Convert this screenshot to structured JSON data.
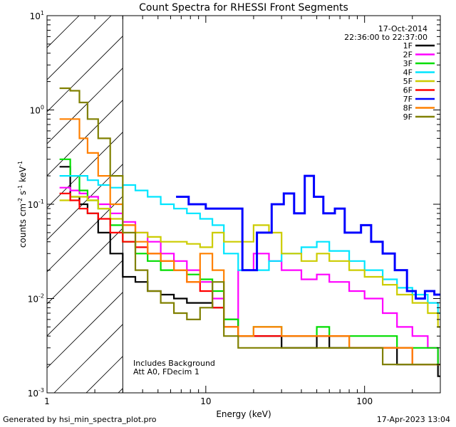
{
  "chart_data": {
    "type": "line",
    "title": "Count Spectra for RHESSI Front Segments",
    "xlabel": "Energy (keV)",
    "ylabel_main": "counts cm",
    "ylabel_sup1": "-2",
    "ylabel_mid": " s",
    "ylabel_sup2": "-1",
    "ylabel_end": " keV",
    "ylabel_sup3": "-1",
    "xscale": "log",
    "yscale": "log",
    "xlim": [
      1,
      300
    ],
    "ylim": [
      0.001,
      10
    ],
    "x_ticks": [
      {
        "value": 1,
        "label": "1"
      },
      {
        "value": 10,
        "label": "10"
      },
      {
        "value": 100,
        "label": "100"
      }
    ],
    "y_ticks": [
      {
        "value": 0.001,
        "base": "10",
        "exp": "-3"
      },
      {
        "value": 0.01,
        "base": "10",
        "exp": "-2"
      },
      {
        "value": 0.1,
        "base": "10",
        "exp": "-1"
      },
      {
        "value": 1,
        "base": "10",
        "exp": "0"
      },
      {
        "value": 10,
        "base": "10",
        "exp": "1"
      }
    ],
    "hatch_region": [
      1,
      3
    ],
    "date": "17-Oct-2014",
    "time_range": "22:36:00 to 22:37:00",
    "annotation_lines": [
      "Includes Background",
      "Att A0, FDecim 1"
    ],
    "legend_position": "top-right",
    "series": [
      {
        "name": "1F",
        "color": "#000000",
        "x": [
          1.2,
          1.4,
          1.6,
          1.8,
          2.1,
          2.5,
          3.0,
          3.6,
          4.3,
          5.2,
          6.3,
          7.6,
          9.2,
          11,
          13,
          16,
          20,
          25,
          30,
          40,
          50,
          60,
          80,
          100,
          130,
          160,
          200,
          250,
          290
        ],
        "y": [
          0.25,
          0.12,
          0.1,
          0.08,
          0.05,
          0.03,
          0.017,
          0.015,
          0.012,
          0.011,
          0.01,
          0.009,
          0.009,
          0.008,
          0.006,
          0.004,
          0.004,
          0.004,
          0.003,
          0.003,
          0.004,
          0.003,
          0.003,
          0.003,
          0.003,
          0.002,
          0.002,
          0.002,
          0.0015
        ]
      },
      {
        "name": "2F",
        "color": "#ff00ff",
        "x": [
          1.2,
          1.4,
          1.6,
          1.8,
          2.1,
          2.5,
          3.0,
          3.6,
          4.3,
          5.2,
          6.3,
          7.6,
          9.2,
          11,
          13,
          16,
          20,
          25,
          30,
          40,
          50,
          60,
          80,
          100,
          130,
          160,
          200,
          250,
          290
        ],
        "y": [
          0.15,
          0.14,
          0.13,
          0.12,
          0.1,
          0.08,
          0.065,
          0.05,
          0.04,
          0.03,
          0.025,
          0.02,
          0.015,
          0.01,
          0.005,
          0.02,
          0.03,
          0.025,
          0.02,
          0.016,
          0.018,
          0.015,
          0.012,
          0.01,
          0.007,
          0.005,
          0.004,
          0.003,
          0.002
        ]
      },
      {
        "name": "3F",
        "color": "#00dd00",
        "x": [
          1.2,
          1.4,
          1.6,
          1.8,
          2.1,
          2.5,
          3.0,
          3.6,
          4.3,
          5.2,
          6.3,
          7.6,
          9.2,
          11,
          13,
          16,
          20,
          25,
          30,
          40,
          50,
          60,
          80,
          100,
          130,
          160,
          200,
          250,
          290
        ],
        "y": [
          0.3,
          0.2,
          0.14,
          0.11,
          0.09,
          0.06,
          0.04,
          0.03,
          0.025,
          0.02,
          0.02,
          0.018,
          0.016,
          0.012,
          0.006,
          0.004,
          0.005,
          0.005,
          0.004,
          0.004,
          0.005,
          0.004,
          0.004,
          0.004,
          0.004,
          0.003,
          0.003,
          0.003,
          0.002
        ]
      },
      {
        "name": "4F",
        "color": "#00e5ff",
        "x": [
          1.2,
          1.4,
          1.6,
          1.8,
          2.1,
          2.5,
          3.0,
          3.6,
          4.3,
          5.2,
          6.3,
          7.6,
          9.2,
          11,
          13,
          16,
          20,
          25,
          30,
          40,
          50,
          60,
          80,
          100,
          130,
          160,
          200,
          250,
          290
        ],
        "y": [
          0.2,
          0.2,
          0.2,
          0.18,
          0.16,
          0.15,
          0.16,
          0.14,
          0.12,
          0.1,
          0.09,
          0.08,
          0.07,
          0.06,
          0.03,
          0.02,
          0.02,
          0.025,
          0.03,
          0.035,
          0.04,
          0.032,
          0.025,
          0.02,
          0.016,
          0.013,
          0.011,
          0.009,
          0.007
        ]
      },
      {
        "name": "5F",
        "color": "#cccc00",
        "x": [
          1.2,
          1.4,
          1.6,
          1.8,
          2.1,
          2.5,
          3.0,
          3.6,
          4.3,
          5.2,
          6.3,
          7.6,
          9.2,
          11,
          13,
          16,
          20,
          25,
          30,
          40,
          50,
          60,
          80,
          100,
          130,
          160,
          200,
          250,
          290
        ],
        "y": [
          0.11,
          0.12,
          0.12,
          0.11,
          0.09,
          0.07,
          0.06,
          0.05,
          0.045,
          0.04,
          0.04,
          0.038,
          0.035,
          0.05,
          0.04,
          0.04,
          0.06,
          0.05,
          0.03,
          0.025,
          0.03,
          0.025,
          0.02,
          0.017,
          0.014,
          0.011,
          0.009,
          0.007,
          0.005
        ]
      },
      {
        "name": "6F",
        "color": "#ff0000",
        "x": [
          1.2,
          1.4,
          1.6,
          1.8,
          2.1,
          2.5,
          3.0,
          3.6,
          4.3,
          5.2,
          6.3,
          7.6,
          9.2,
          11,
          13,
          16,
          20,
          25,
          30,
          40,
          50,
          60,
          80,
          100,
          130,
          160,
          200,
          250,
          290
        ],
        "y": [
          0.13,
          0.11,
          0.09,
          0.08,
          0.07,
          0.05,
          0.04,
          0.035,
          0.03,
          0.025,
          0.02,
          0.015,
          0.012,
          0.008,
          0.005,
          0.004,
          0.004,
          0.004,
          0.004,
          0.004,
          0.004,
          0.004,
          0.003,
          0.003,
          0.003,
          0.003,
          0.002,
          0.002,
          0.002
        ]
      },
      {
        "name": "7F",
        "color": "#0000ff",
        "x": [
          6.5,
          7.8,
          10,
          17,
          21,
          26,
          31,
          36,
          42,
          48,
          55,
          65,
          75,
          95,
          110,
          130,
          155,
          185,
          210,
          240,
          275
        ],
        "y": [
          0.12,
          0.1,
          0.09,
          0.02,
          0.05,
          0.1,
          0.13,
          0.08,
          0.2,
          0.12,
          0.08,
          0.09,
          0.05,
          0.06,
          0.04,
          0.03,
          0.02,
          0.012,
          0.01,
          0.012,
          0.011
        ]
      },
      {
        "name": "8F",
        "color": "#ff8000",
        "x": [
          1.2,
          1.4,
          1.6,
          1.8,
          2.1,
          2.5,
          3.0,
          3.6,
          4.3,
          5.2,
          6.3,
          7.6,
          9.2,
          11,
          13,
          16,
          20,
          25,
          30,
          40,
          50,
          60,
          80,
          100,
          130,
          160,
          200,
          250,
          290
        ],
        "y": [
          0.8,
          0.8,
          0.5,
          0.35,
          0.2,
          0.1,
          0.06,
          0.04,
          0.03,
          0.025,
          0.02,
          0.015,
          0.03,
          0.02,
          0.005,
          0.004,
          0.005,
          0.005,
          0.004,
          0.004,
          0.004,
          0.004,
          0.003,
          0.003,
          0.003,
          0.003,
          0.002,
          0.002,
          0.002
        ]
      },
      {
        "name": "9F",
        "color": "#808000",
        "x": [
          1.2,
          1.4,
          1.6,
          1.8,
          2.1,
          2.5,
          3.0,
          3.6,
          4.3,
          5.2,
          6.3,
          7.6,
          9.2,
          11,
          13,
          16,
          20,
          25,
          30,
          40,
          50,
          60,
          80,
          100,
          130,
          160,
          200,
          250,
          290
        ],
        "y": [
          1.7,
          1.6,
          1.2,
          0.8,
          0.5,
          0.2,
          0.05,
          0.02,
          0.012,
          0.009,
          0.007,
          0.006,
          0.008,
          0.015,
          0.004,
          0.003,
          0.003,
          0.003,
          0.003,
          0.003,
          0.003,
          0.003,
          0.003,
          0.003,
          0.002,
          0.002,
          0.002,
          0.002,
          0.002
        ]
      }
    ]
  },
  "footer": {
    "generated_by": "Generated by hsi_min_spectra_plot.pro",
    "timestamp": "17-Apr-2023 13:04"
  }
}
